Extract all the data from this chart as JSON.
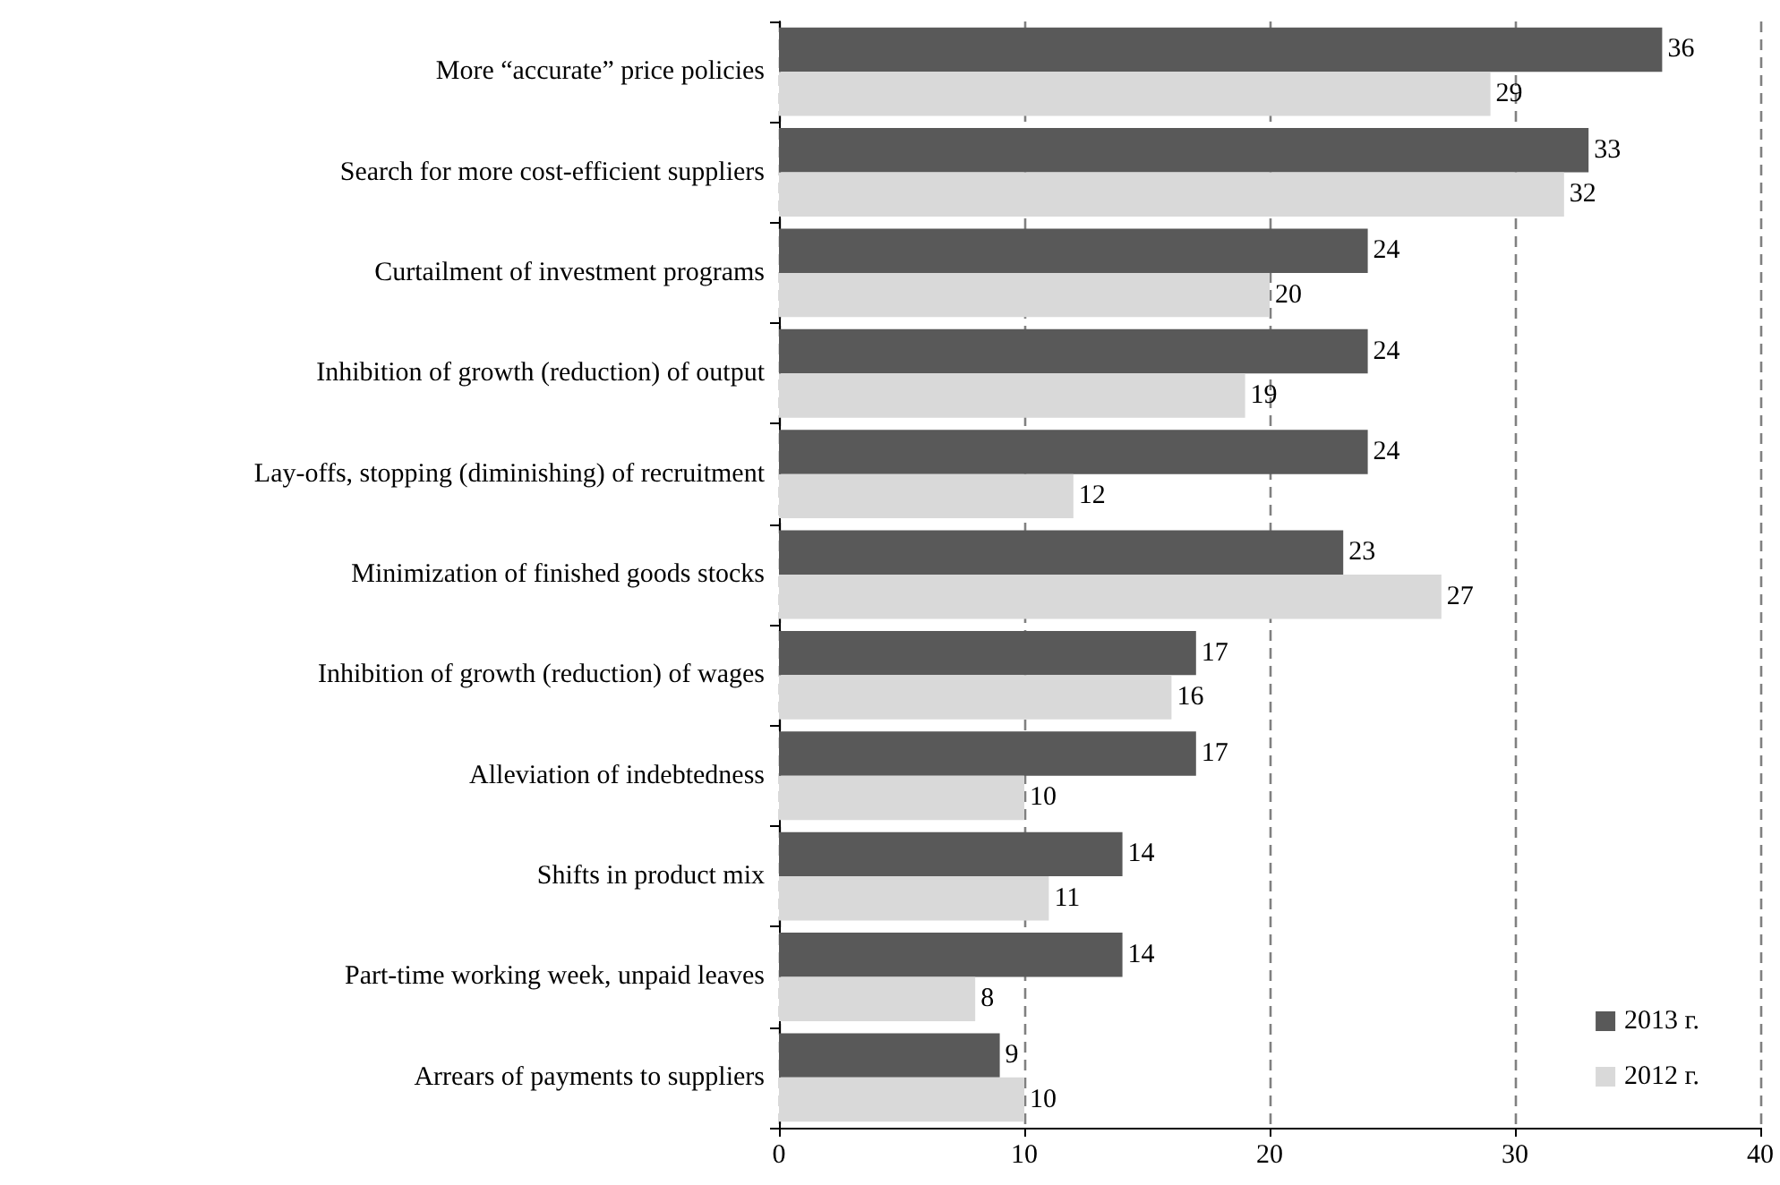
{
  "chart_data": {
    "type": "bar",
    "orientation": "horizontal",
    "categories": [
      "More “accurate” price policies",
      "Search for more cost-efficient suppliers",
      "Curtailment of investment programs",
      "Inhibition of growth (reduction) of output",
      "Lay-offs, stopping (diminishing) of recruitment",
      "Minimization of finished goods stocks",
      "Inhibition of growth (reduction) of wages",
      "Alleviation of indebtedness",
      "Shifts in product mix",
      "Part-time working week, unpaid leaves",
      "Arrears of payments to suppliers"
    ],
    "series": [
      {
        "name": "2013 г.",
        "color": "#595959",
        "values": [
          36,
          33,
          24,
          24,
          24,
          23,
          17,
          17,
          14,
          14,
          9
        ]
      },
      {
        "name": "2012 г.",
        "color": "#d9d9d9",
        "values": [
          29,
          32,
          20,
          19,
          12,
          27,
          16,
          10,
          11,
          8,
          10
        ]
      }
    ],
    "xlim": [
      0,
      40
    ],
    "xticks": [
      0,
      10,
      20,
      30,
      40
    ],
    "grid": "x",
    "legend": "bottom right",
    "data_labels": true
  }
}
